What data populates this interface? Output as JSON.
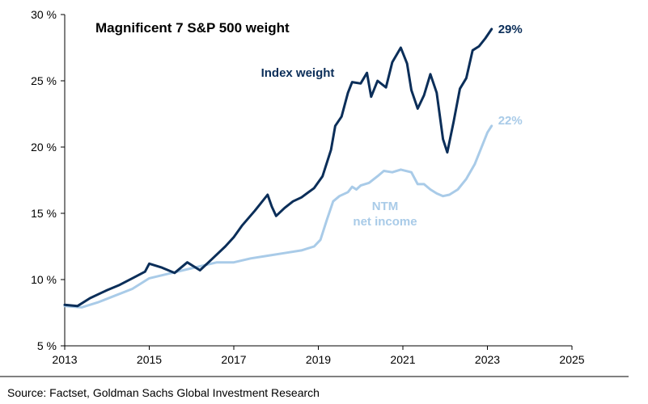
{
  "chart_data": {
    "type": "line",
    "title": "Magnificent 7 S&P 500 weight",
    "xlabel": "",
    "ylabel": "",
    "xlim": [
      2013,
      2025
    ],
    "ylim": [
      5,
      30
    ],
    "x_ticks": [
      "2013",
      "2015",
      "2017",
      "2019",
      "2021",
      "2023",
      "2025"
    ],
    "y_ticks": [
      "5 %",
      "10 %",
      "15 %",
      "20 %",
      "25 %",
      "30 %"
    ],
    "grid": false,
    "series": [
      {
        "name": "Index weight",
        "color": "#0b2e59",
        "end_label": "29%",
        "points": [
          [
            2013.0,
            8.1
          ],
          [
            2013.3,
            8.0
          ],
          [
            2013.6,
            8.6
          ],
          [
            2014.0,
            9.2
          ],
          [
            2014.3,
            9.6
          ],
          [
            2014.6,
            10.1
          ],
          [
            2014.9,
            10.6
          ],
          [
            2015.0,
            11.2
          ],
          [
            2015.3,
            10.9
          ],
          [
            2015.6,
            10.5
          ],
          [
            2015.9,
            11.3
          ],
          [
            2016.2,
            10.7
          ],
          [
            2016.5,
            11.6
          ],
          [
            2016.8,
            12.5
          ],
          [
            2017.0,
            13.2
          ],
          [
            2017.2,
            14.1
          ],
          [
            2017.5,
            15.2
          ],
          [
            2017.8,
            16.4
          ],
          [
            2017.9,
            15.5
          ],
          [
            2018.0,
            14.8
          ],
          [
            2018.2,
            15.4
          ],
          [
            2018.4,
            15.9
          ],
          [
            2018.6,
            16.2
          ],
          [
            2018.9,
            16.9
          ],
          [
            2019.1,
            17.8
          ],
          [
            2019.3,
            19.8
          ],
          [
            2019.4,
            21.6
          ],
          [
            2019.55,
            22.3
          ],
          [
            2019.7,
            24.1
          ],
          [
            2019.8,
            24.9
          ],
          [
            2020.0,
            24.8
          ],
          [
            2020.15,
            25.6
          ],
          [
            2020.25,
            23.8
          ],
          [
            2020.4,
            25.0
          ],
          [
            2020.6,
            24.5
          ],
          [
            2020.75,
            26.4
          ],
          [
            2020.95,
            27.5
          ],
          [
            2021.1,
            26.3
          ],
          [
            2021.2,
            24.3
          ],
          [
            2021.35,
            22.9
          ],
          [
            2021.5,
            23.9
          ],
          [
            2021.65,
            25.5
          ],
          [
            2021.8,
            24.1
          ],
          [
            2021.95,
            20.6
          ],
          [
            2022.05,
            19.6
          ],
          [
            2022.2,
            21.9
          ],
          [
            2022.35,
            24.4
          ],
          [
            2022.5,
            25.2
          ],
          [
            2022.65,
            27.3
          ],
          [
            2022.8,
            27.6
          ],
          [
            2022.95,
            28.2
          ],
          [
            2023.1,
            28.9
          ]
        ]
      },
      {
        "name": "NTM net income",
        "label_lines": [
          "NTM",
          "net income"
        ],
        "color": "#a9cbe8",
        "end_label": "22%",
        "points": [
          [
            2013.0,
            8.0
          ],
          [
            2013.4,
            7.9
          ],
          [
            2013.8,
            8.3
          ],
          [
            2014.2,
            8.8
          ],
          [
            2014.6,
            9.3
          ],
          [
            2015.0,
            10.1
          ],
          [
            2015.4,
            10.4
          ],
          [
            2015.8,
            10.7
          ],
          [
            2016.2,
            11.0
          ],
          [
            2016.6,
            11.3
          ],
          [
            2017.0,
            11.3
          ],
          [
            2017.4,
            11.6
          ],
          [
            2017.8,
            11.8
          ],
          [
            2018.2,
            12.0
          ],
          [
            2018.6,
            12.2
          ],
          [
            2018.9,
            12.5
          ],
          [
            2019.05,
            13.0
          ],
          [
            2019.2,
            14.5
          ],
          [
            2019.35,
            15.9
          ],
          [
            2019.5,
            16.3
          ],
          [
            2019.7,
            16.6
          ],
          [
            2019.8,
            17.0
          ],
          [
            2019.9,
            16.8
          ],
          [
            2020.0,
            17.1
          ],
          [
            2020.2,
            17.3
          ],
          [
            2020.4,
            17.8
          ],
          [
            2020.55,
            18.2
          ],
          [
            2020.75,
            18.1
          ],
          [
            2020.95,
            18.3
          ],
          [
            2021.2,
            18.1
          ],
          [
            2021.35,
            17.2
          ],
          [
            2021.5,
            17.2
          ],
          [
            2021.65,
            16.8
          ],
          [
            2021.8,
            16.5
          ],
          [
            2021.95,
            16.3
          ],
          [
            2022.1,
            16.4
          ],
          [
            2022.3,
            16.8
          ],
          [
            2022.5,
            17.6
          ],
          [
            2022.7,
            18.7
          ],
          [
            2022.85,
            19.9
          ],
          [
            2023.0,
            21.1
          ],
          [
            2023.1,
            21.6
          ]
        ]
      }
    ]
  },
  "footer": {
    "source": "Source: Factset, Goldman Sachs Global Investment Research"
  }
}
